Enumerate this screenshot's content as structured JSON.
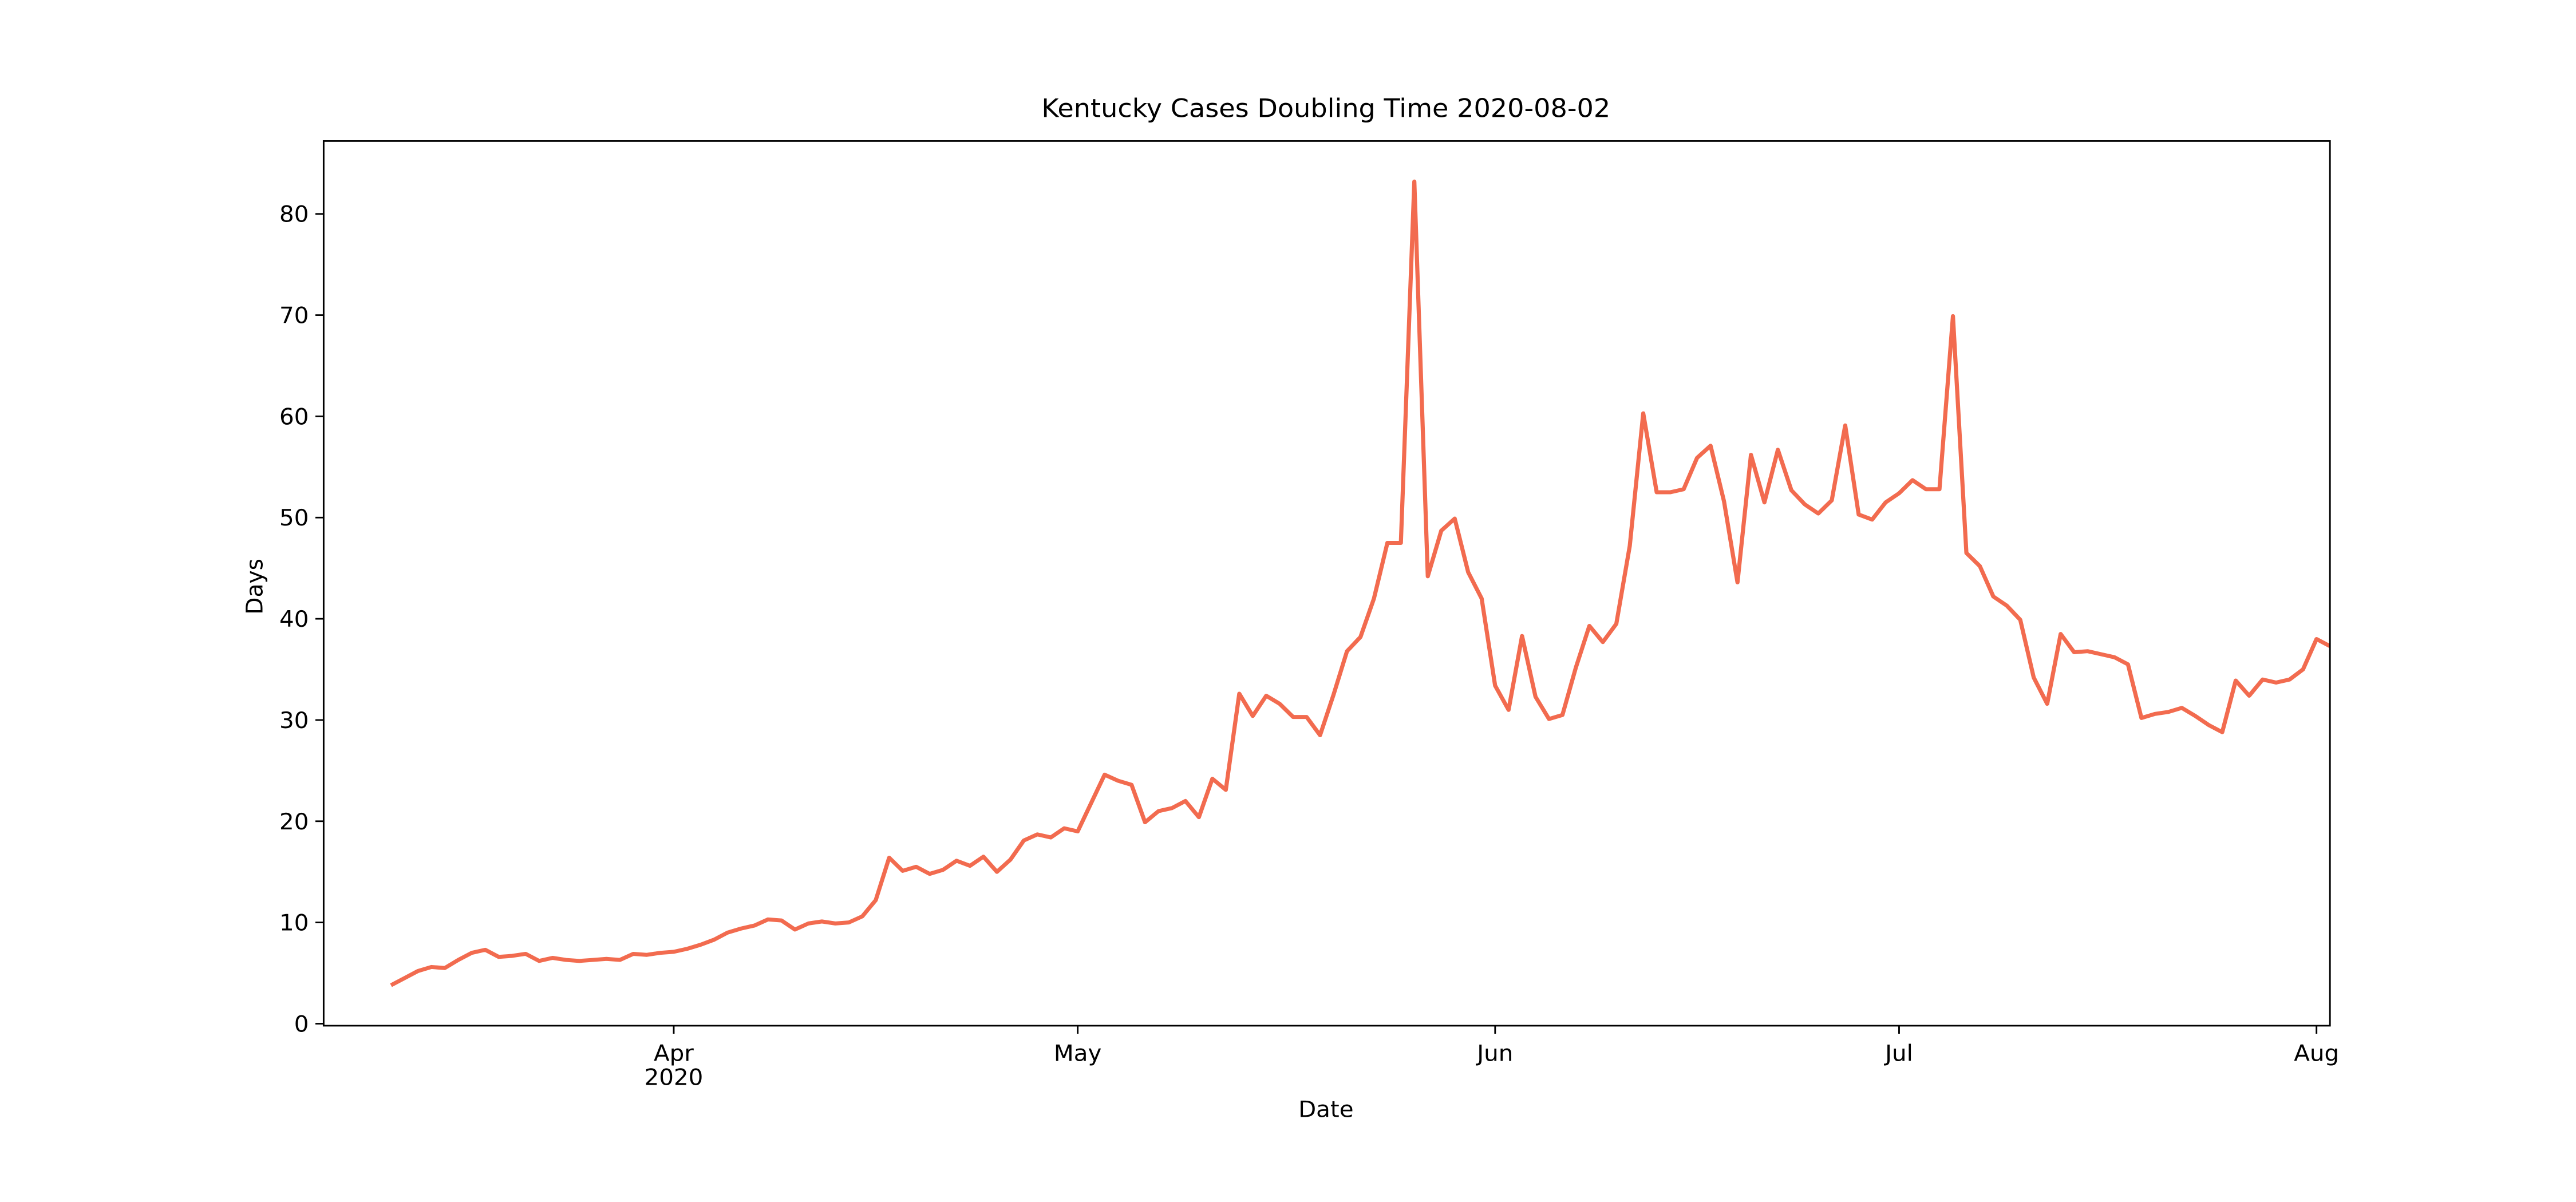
{
  "chart_data": {
    "type": "line",
    "title": "Kentucky Cases Doubling Time 2020-08-02",
    "x_label": "Date",
    "y_label": "Days",
    "x": [
      "2020-03-11",
      "2020-03-12",
      "2020-03-13",
      "2020-03-14",
      "2020-03-15",
      "2020-03-16",
      "2020-03-17",
      "2020-03-18",
      "2020-03-19",
      "2020-03-20",
      "2020-03-21",
      "2020-03-22",
      "2020-03-23",
      "2020-03-24",
      "2020-03-25",
      "2020-03-26",
      "2020-03-27",
      "2020-03-28",
      "2020-03-29",
      "2020-03-30",
      "2020-03-31",
      "2020-04-01",
      "2020-04-02",
      "2020-04-03",
      "2020-04-04",
      "2020-04-05",
      "2020-04-06",
      "2020-04-07",
      "2020-04-08",
      "2020-04-09",
      "2020-04-10",
      "2020-04-11",
      "2020-04-12",
      "2020-04-13",
      "2020-04-14",
      "2020-04-15",
      "2020-04-16",
      "2020-04-17",
      "2020-04-18",
      "2020-04-19",
      "2020-04-20",
      "2020-04-21",
      "2020-04-22",
      "2020-04-23",
      "2020-04-24",
      "2020-04-25",
      "2020-04-26",
      "2020-04-27",
      "2020-04-28",
      "2020-04-29",
      "2020-04-30",
      "2020-05-01",
      "2020-05-02",
      "2020-05-03",
      "2020-05-04",
      "2020-05-05",
      "2020-05-06",
      "2020-05-07",
      "2020-05-08",
      "2020-05-09",
      "2020-05-10",
      "2020-05-11",
      "2020-05-12",
      "2020-05-13",
      "2020-05-14",
      "2020-05-15",
      "2020-05-16",
      "2020-05-17",
      "2020-05-18",
      "2020-05-19",
      "2020-05-20",
      "2020-05-21",
      "2020-05-22",
      "2020-05-23",
      "2020-05-24",
      "2020-05-25",
      "2020-05-26",
      "2020-05-27",
      "2020-05-28",
      "2020-05-29",
      "2020-05-30",
      "2020-05-31",
      "2020-06-01",
      "2020-06-02",
      "2020-06-03",
      "2020-06-04",
      "2020-06-05",
      "2020-06-06",
      "2020-06-07",
      "2020-06-08",
      "2020-06-09",
      "2020-06-10",
      "2020-06-11",
      "2020-06-12",
      "2020-06-13",
      "2020-06-14",
      "2020-06-15",
      "2020-06-16",
      "2020-06-17",
      "2020-06-18",
      "2020-06-19",
      "2020-06-20",
      "2020-06-21",
      "2020-06-22",
      "2020-06-23",
      "2020-06-24",
      "2020-06-25",
      "2020-06-26",
      "2020-06-27",
      "2020-06-28",
      "2020-06-29",
      "2020-06-30",
      "2020-07-01",
      "2020-07-02",
      "2020-07-03",
      "2020-07-04",
      "2020-07-05",
      "2020-07-06",
      "2020-07-07",
      "2020-07-08",
      "2020-07-09",
      "2020-07-10",
      "2020-07-11",
      "2020-07-12",
      "2020-07-13",
      "2020-07-14",
      "2020-07-15",
      "2020-07-16",
      "2020-07-17",
      "2020-07-18",
      "2020-07-19",
      "2020-07-20",
      "2020-07-21",
      "2020-07-22",
      "2020-07-23",
      "2020-07-24",
      "2020-07-25",
      "2020-07-26",
      "2020-07-27",
      "2020-07-28",
      "2020-07-29",
      "2020-07-30",
      "2020-07-31",
      "2020-08-01",
      "2020-08-02"
    ],
    "series": [
      {
        "name": "Doubling time",
        "color": "#f26b4f",
        "values": [
          3.8,
          4.5,
          5.2,
          5.6,
          5.5,
          6.3,
          7.0,
          7.3,
          6.6,
          6.7,
          6.9,
          6.2,
          6.5,
          6.3,
          6.2,
          6.3,
          6.4,
          6.3,
          6.9,
          6.8,
          7.0,
          7.1,
          7.4,
          7.8,
          8.3,
          9.0,
          9.4,
          9.7,
          10.3,
          10.2,
          9.3,
          9.9,
          10.1,
          9.9,
          10.0,
          10.6,
          12.2,
          16.4,
          15.1,
          15.5,
          14.8,
          15.2,
          16.1,
          15.6,
          16.5,
          15.0,
          16.2,
          18.1,
          18.7,
          18.4,
          19.3,
          19.0,
          21.8,
          24.6,
          24.0,
          23.6,
          19.9,
          21.0,
          21.3,
          22.0,
          20.4,
          24.2,
          23.1,
          32.6,
          30.4,
          32.4,
          31.6,
          30.3,
          30.3,
          28.5,
          32.5,
          36.8,
          38.2,
          42.0,
          47.5,
          47.5,
          83.2,
          44.2,
          48.7,
          49.9,
          44.6,
          42.0,
          33.4,
          31.0,
          38.3,
          32.3,
          30.1,
          30.5,
          35.2,
          39.3,
          37.7,
          39.5,
          47.2,
          60.3,
          52.5,
          52.5,
          52.8,
          55.9,
          57.1,
          51.6,
          43.6,
          56.2,
          51.5,
          56.7,
          52.7,
          51.3,
          50.4,
          51.7,
          59.1,
          50.3,
          49.8,
          51.5,
          52.4,
          53.7,
          52.8,
          52.8,
          69.9,
          46.5,
          45.2,
          42.2,
          41.3,
          39.9,
          34.2,
          31.6,
          38.5,
          36.7,
          36.8,
          36.5,
          36.2,
          35.5,
          30.2,
          30.6,
          30.8,
          31.2,
          30.4,
          29.5,
          28.8,
          33.9,
          32.4,
          34.0,
          33.7,
          34.0,
          35.0,
          38.0,
          37.3
        ]
      }
    ],
    "xlim": [
      "2020-03-06",
      "2020-08-02"
    ],
    "xticks": [
      {
        "value": "2020-04-01",
        "label": "Apr"
      },
      {
        "value": "2020-05-01",
        "label": "May"
      },
      {
        "value": "2020-06-01",
        "label": "Jun"
      },
      {
        "value": "2020-07-01",
        "label": "Jul"
      },
      {
        "value": "2020-08-01",
        "label": "Aug"
      }
    ],
    "x_year_label": "2020",
    "ylim": [
      -0.2,
      87.2
    ],
    "yticks": [
      0,
      10,
      20,
      30,
      40,
      50,
      60,
      70,
      80
    ],
    "grid": false
  }
}
